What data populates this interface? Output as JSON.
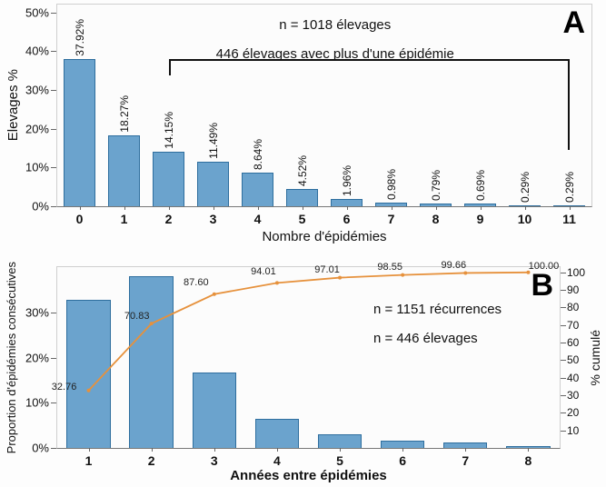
{
  "chart_data": [
    {
      "id": "panel-a",
      "type": "bar",
      "panel_label": "A",
      "xlabel": "Nombre d'épidémies",
      "ylabel": "Elevages %",
      "categories": [
        "0",
        "1",
        "2",
        "3",
        "4",
        "5",
        "6",
        "7",
        "8",
        "9",
        "10",
        "11"
      ],
      "values": [
        37.92,
        18.27,
        14.15,
        11.49,
        8.64,
        4.52,
        1.96,
        0.98,
        0.79,
        0.69,
        0.29,
        0.29
      ],
      "bar_labels": [
        "37.92%",
        "18.27%",
        "14.15%",
        "11.49%",
        "8.64%",
        "4.52%",
        "1.96%",
        "0.98%",
        "0.79%",
        "0.69%",
        "0.29%",
        "0.29%"
      ],
      "yticks": [
        0,
        10,
        20,
        30,
        40,
        50
      ],
      "ylim": [
        0,
        52
      ],
      "grid": false,
      "annotations": [
        "n = 1018 élevages",
        "446 élevages avec plus d'une épidémie"
      ],
      "bracket": {
        "from_category": "2",
        "to_category": "11",
        "at_value": 38
      },
      "bar_color": "#6ba3cd",
      "bar_border": "#2e6e9e"
    },
    {
      "id": "panel-b",
      "type": "bar+line",
      "panel_label": "B",
      "xlabel": "Années entre épidémies",
      "ylabel_left": "Proportion d'épidémies consécutives",
      "ylabel_right": "% cumulé",
      "categories": [
        "1",
        "2",
        "3",
        "4",
        "5",
        "6",
        "7",
        "8"
      ],
      "bar_values": [
        32.76,
        38.07,
        16.77,
        6.41,
        3.0,
        1.54,
        1.11,
        0.34
      ],
      "line_values": [
        32.76,
        70.83,
        87.6,
        94.01,
        97.01,
        98.55,
        99.66,
        100.0
      ],
      "line_labels": [
        "32.76",
        "70.83",
        "87.60",
        "94.01",
        "97.01",
        "98.55",
        "99.66",
        "100.00"
      ],
      "yticks_left": [
        0,
        10,
        20,
        30
      ],
      "ylim_left": [
        0,
        40
      ],
      "yticks_right": [
        10,
        20,
        30,
        40,
        50,
        60,
        70,
        80,
        90,
        100
      ],
      "ylim_right": [
        0,
        103
      ],
      "grid": false,
      "annotations": [
        "n = 1151 récurrences",
        "n = 446 élevages"
      ],
      "bar_color": "#6ba3cd",
      "bar_border": "#2e6e9e",
      "line_color": "#e6913c"
    }
  ]
}
